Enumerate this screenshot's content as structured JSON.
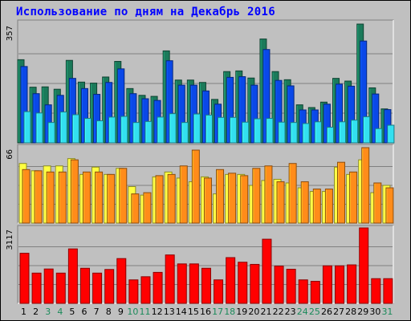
{
  "title": "Использование по дням на Декабрь 2016",
  "chart_data": [
    {
      "type": "bar",
      "panel": "top",
      "ymax_label": "357",
      "categories": [
        "1",
        "2",
        "3",
        "4",
        "5",
        "6",
        "7",
        "8",
        "9",
        "10",
        "11",
        "12",
        "13",
        "14",
        "15",
        "16",
        "17",
        "18",
        "19",
        "20",
        "21",
        "22",
        "23",
        "24",
        "25",
        "26",
        "27",
        "28",
        "29",
        "30",
        "31"
      ],
      "weekend_days": [
        "3",
        "4",
        "10",
        "11",
        "17",
        "18",
        "24",
        "25",
        "31"
      ],
      "series": [
        {
          "color": "#1b7a5a",
          "values": [
            245,
            164,
            165,
            158,
            243,
            179,
            176,
            194,
            240,
            160,
            140,
            137,
            271,
            185,
            185,
            178,
            128,
            210,
            212,
            191,
            306,
            210,
            186,
            112,
            104,
            120,
            190,
            182,
            350,
            162,
            100
          ]
        },
        {
          "color": "#0a48e8",
          "values": [
            225,
            145,
            112,
            140,
            190,
            160,
            143,
            178,
            218,
            145,
            130,
            125,
            242,
            170,
            170,
            153,
            114,
            193,
            195,
            170,
            275,
            184,
            168,
            97,
            97,
            114,
            173,
            167,
            300,
            144,
            98
          ]
        },
        {
          "color": "#33e0f0",
          "values": [
            92,
            88,
            60,
            91,
            83,
            72,
            65,
            76,
            78,
            60,
            63,
            76,
            86,
            60,
            85,
            82,
            75,
            75,
            61,
            71,
            72,
            61,
            60,
            57,
            62,
            46,
            62,
            67,
            77,
            42,
            52
          ]
        }
      ]
    },
    {
      "type": "bar",
      "panel": "middle",
      "ymax_label": "66",
      "categories": [
        "1",
        "2",
        "3",
        "4",
        "5",
        "6",
        "7",
        "8",
        "9",
        "10",
        "11",
        "12",
        "13",
        "14",
        "15",
        "16",
        "17",
        "18",
        "19",
        "20",
        "21",
        "22",
        "23",
        "24",
        "25",
        "26",
        "27",
        "28",
        "29",
        "30",
        "31"
      ],
      "series": [
        {
          "color": "#ffff40",
          "values": [
            49,
            43,
            47,
            47,
            53,
            40,
            46,
            40,
            45,
            30,
            23,
            38,
            42,
            37,
            34,
            38,
            24,
            40,
            40,
            31,
            35,
            36,
            33,
            29,
            26,
            26,
            46,
            40,
            52,
            25,
            31
          ]
        },
        {
          "color": "#ff8c1a",
          "values": [
            44,
            43,
            42,
            42,
            52,
            42,
            42,
            40,
            45,
            24,
            25,
            39,
            40,
            47,
            60,
            37,
            44,
            41,
            39,
            45,
            47,
            34,
            49,
            34,
            28,
            28,
            50,
            42,
            62,
            33,
            29
          ]
        }
      ]
    },
    {
      "type": "bar",
      "panel": "bottom",
      "ymax_label": "3117",
      "categories": [
        "1",
        "2",
        "3",
        "4",
        "5",
        "6",
        "7",
        "8",
        "9",
        "10",
        "11",
        "12",
        "13",
        "14",
        "15",
        "16",
        "17",
        "18",
        "19",
        "20",
        "21",
        "22",
        "23",
        "24",
        "25",
        "26",
        "27",
        "28",
        "29",
        "30",
        "31"
      ],
      "series": [
        {
          "color": "#ff0000",
          "values": [
            2070,
            1250,
            1420,
            1250,
            2250,
            1450,
            1250,
            1400,
            1850,
            970,
            1100,
            1280,
            2000,
            1630,
            1630,
            1450,
            970,
            1890,
            1700,
            1610,
            2650,
            1540,
            1410,
            970,
            910,
            1550,
            1550,
            1590,
            3117,
            1020,
            1020
          ]
        }
      ]
    }
  ]
}
